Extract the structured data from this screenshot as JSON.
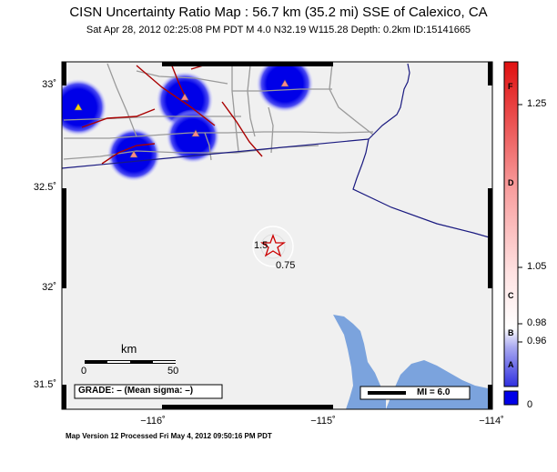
{
  "header": {
    "title": "CISN Uncertainty Ratio Map : 56.7 km (35.2 mi) SSE of Calexico, CA",
    "subtitle": "Sat Apr 28, 2012 02:25:08 PM PDT    M 4.0    N32.19 W115.28    Depth: 0.2km    ID:15141665"
  },
  "axes": {
    "lat_labels": [
      "33˚",
      "32.5˚",
      "32˚",
      "31.5˚"
    ],
    "lon_labels": [
      "−116˚",
      "−115˚",
      "−114˚"
    ]
  },
  "map": {
    "scale_bar": {
      "unit": "km",
      "zero": "0",
      "max": "50"
    },
    "grade_box": "GRADE: – (Mean sigma: –)",
    "mi_legend": "MI = 6.0",
    "contour_labels": [
      "1.5",
      "0.75"
    ],
    "colors": {
      "water": "#7ba3dd",
      "station_blob": "#0000e8",
      "fault": "#b00000",
      "border": "#1a1a80",
      "roads": "#999999"
    }
  },
  "colorbar": {
    "ticks": [
      "1.25",
      "1.05",
      "0.98",
      "0.96",
      "0"
    ],
    "grades": [
      "F",
      "D",
      "C",
      "B",
      "A"
    ]
  },
  "footer": {
    "text": "Map Version 12 Processed Fri May  4, 2012 09:50:16 PM PDT"
  }
}
